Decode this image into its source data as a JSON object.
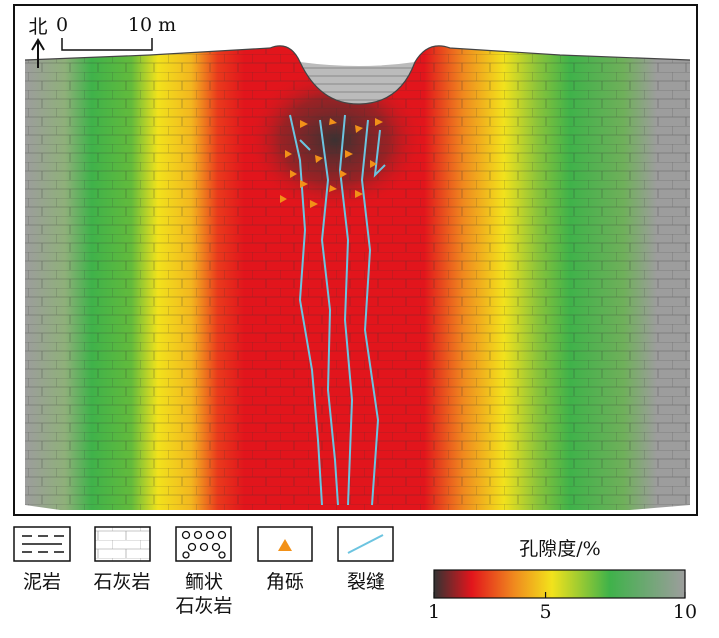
{
  "compass": {
    "label": "北"
  },
  "scale_bar": {
    "start": "0",
    "end": "10 m"
  },
  "legend": [
    {
      "label": "泥岩"
    },
    {
      "label": "石灰岩"
    },
    {
      "label": [
        "鲕状",
        "石灰岩"
      ]
    },
    {
      "label": "角砾"
    },
    {
      "label": "裂缝"
    }
  ],
  "colorbar": {
    "title": "孔隙度/%",
    "ticks": [
      1,
      5,
      10
    ]
  }
}
